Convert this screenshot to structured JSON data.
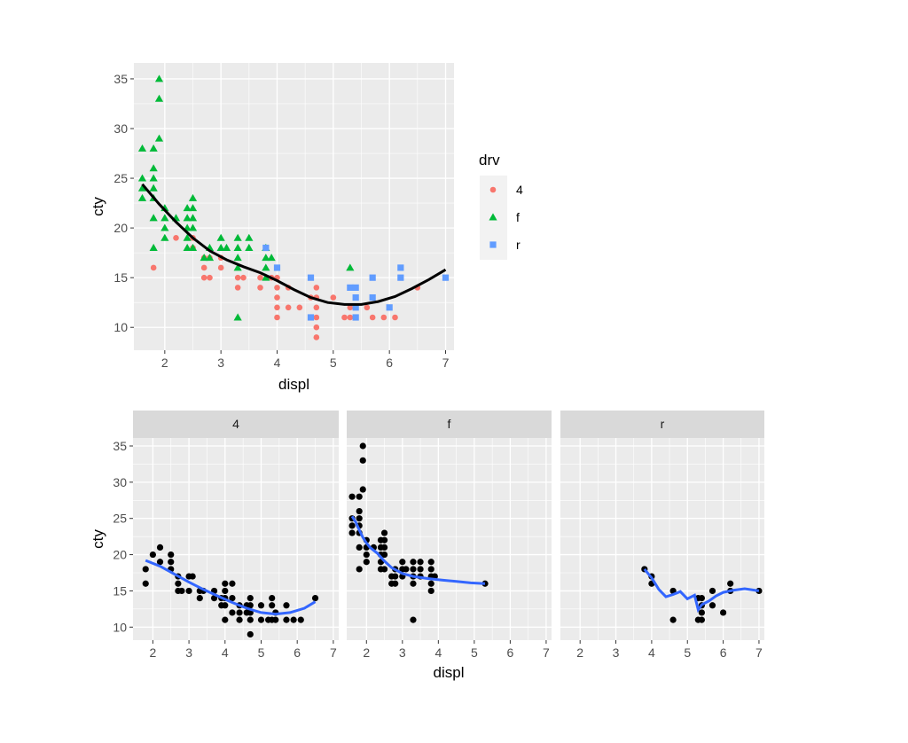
{
  "chart_data": [
    {
      "type": "scatter",
      "title": "",
      "xlabel": "displ",
      "ylabel": "cty",
      "xlim": [
        1.45,
        7.15
      ],
      "ylim": [
        7.7,
        36.6
      ],
      "x_ticks": [
        2,
        3,
        4,
        5,
        6,
        7
      ],
      "y_ticks": [
        10,
        15,
        20,
        25,
        30,
        35
      ],
      "grid": true,
      "legend": {
        "title": "drv",
        "position": "right",
        "entries": [
          {
            "label": "4",
            "color": "#F8766D",
            "shape": "circle"
          },
          {
            "label": "f",
            "color": "#00BA38",
            "shape": "triangle"
          },
          {
            "label": "r",
            "color": "#619CFF",
            "shape": "square"
          }
        ]
      },
      "series": [
        {
          "name": "4",
          "color": "#F8766D",
          "shape": "circle",
          "points": [
            [
              1.8,
              16
            ],
            [
              2.2,
              19
            ],
            [
              2.5,
              18
            ],
            [
              2.5,
              19
            ],
            [
              2.7,
              17
            ],
            [
              2.7,
              16
            ],
            [
              2.7,
              15
            ],
            [
              2.8,
              17
            ],
            [
              2.8,
              15
            ],
            [
              3.0,
              17
            ],
            [
              3.0,
              16
            ],
            [
              3.3,
              15
            ],
            [
              3.3,
              14
            ],
            [
              3.4,
              15
            ],
            [
              3.7,
              15
            ],
            [
              3.7,
              14
            ],
            [
              3.9,
              15
            ],
            [
              4.0,
              16
            ],
            [
              4.0,
              15
            ],
            [
              4.0,
              14
            ],
            [
              4.0,
              13
            ],
            [
              4.0,
              12
            ],
            [
              4.0,
              11
            ],
            [
              4.2,
              14
            ],
            [
              4.2,
              12
            ],
            [
              4.4,
              12
            ],
            [
              4.6,
              13
            ],
            [
              4.6,
              11
            ],
            [
              4.7,
              14
            ],
            [
              4.7,
              13
            ],
            [
              4.7,
              12
            ],
            [
              4.7,
              11
            ],
            [
              4.7,
              10
            ],
            [
              4.7,
              9
            ],
            [
              5.0,
              13
            ],
            [
              5.2,
              11
            ],
            [
              5.3,
              11
            ],
            [
              5.3,
              12
            ],
            [
              5.4,
              12
            ],
            [
              5.4,
              11
            ],
            [
              5.6,
              12
            ],
            [
              5.7,
              13
            ],
            [
              5.7,
              11
            ],
            [
              5.9,
              11
            ],
            [
              6.1,
              11
            ],
            [
              6.5,
              14
            ]
          ]
        },
        {
          "name": "f",
          "color": "#00BA38",
          "shape": "triangle",
          "points": [
            [
              1.6,
              28
            ],
            [
              1.6,
              25
            ],
            [
              1.6,
              24
            ],
            [
              1.6,
              23
            ],
            [
              1.8,
              28
            ],
            [
              1.8,
              26
            ],
            [
              1.8,
              25
            ],
            [
              1.8,
              24
            ],
            [
              1.8,
              23
            ],
            [
              1.8,
              21
            ],
            [
              1.8,
              18
            ],
            [
              1.9,
              35
            ],
            [
              1.9,
              33
            ],
            [
              1.9,
              29
            ],
            [
              2.0,
              22
            ],
            [
              2.0,
              21
            ],
            [
              2.0,
              20
            ],
            [
              2.0,
              19
            ],
            [
              2.2,
              21
            ],
            [
              2.4,
              22
            ],
            [
              2.4,
              21
            ],
            [
              2.4,
              20
            ],
            [
              2.4,
              19
            ],
            [
              2.4,
              18
            ],
            [
              2.5,
              23
            ],
            [
              2.5,
              22
            ],
            [
              2.5,
              21
            ],
            [
              2.5,
              20
            ],
            [
              2.5,
              18
            ],
            [
              2.7,
              17
            ],
            [
              2.8,
              18
            ],
            [
              2.8,
              17
            ],
            [
              3.0,
              19
            ],
            [
              3.0,
              18
            ],
            [
              3.1,
              18
            ],
            [
              3.3,
              19
            ],
            [
              3.3,
              18
            ],
            [
              3.3,
              17
            ],
            [
              3.3,
              16
            ],
            [
              3.3,
              11
            ],
            [
              3.5,
              19
            ],
            [
              3.5,
              18
            ],
            [
              3.8,
              18
            ],
            [
              3.8,
              17
            ],
            [
              3.8,
              16
            ],
            [
              3.8,
              15
            ],
            [
              3.9,
              17
            ],
            [
              5.3,
              16
            ]
          ]
        },
        {
          "name": "r",
          "color": "#619CFF",
          "shape": "square",
          "points": [
            [
              3.8,
              18
            ],
            [
              4.0,
              16
            ],
            [
              4.6,
              15
            ],
            [
              4.6,
              11
            ],
            [
              5.3,
              14
            ],
            [
              5.4,
              14
            ],
            [
              5.4,
              13
            ],
            [
              5.4,
              12
            ],
            [
              5.4,
              11
            ],
            [
              5.7,
              15
            ],
            [
              5.7,
              13
            ],
            [
              6.2,
              16
            ],
            [
              6.2,
              15
            ],
            [
              6.0,
              12
            ],
            [
              7.0,
              15
            ]
          ]
        }
      ],
      "smooth": {
        "color": "#000000",
        "x": [
          1.6,
          1.9,
          2.2,
          2.5,
          2.8,
          3.1,
          3.4,
          3.7,
          4.0,
          4.3,
          4.6,
          4.9,
          5.2,
          5.5,
          5.8,
          6.1,
          6.4,
          6.7,
          7.0
        ],
        "y": [
          24.4,
          22.4,
          20.6,
          19.0,
          17.7,
          16.8,
          16.1,
          15.5,
          14.7,
          13.8,
          13.0,
          12.5,
          12.3,
          12.3,
          12.6,
          13.1,
          13.9,
          14.8,
          15.8
        ]
      }
    },
    {
      "type": "scatter",
      "title": "",
      "xlabel": "displ",
      "ylabel": "cty",
      "xlim": [
        1.45,
        7.15
      ],
      "ylim": [
        8.2,
        36.1
      ],
      "x_ticks": [
        2,
        3,
        4,
        5,
        6,
        7
      ],
      "y_ticks": [
        10,
        15,
        20,
        25,
        30,
        35
      ],
      "grid": true,
      "point_color": "#000000",
      "smooth_color": "#3366FF",
      "facets": [
        {
          "label": "4",
          "points": [
            [
              1.8,
              18
            ],
            [
              1.8,
              16
            ],
            [
              2.0,
              20
            ],
            [
              2.2,
              21
            ],
            [
              2.2,
              19
            ],
            [
              2.5,
              20
            ],
            [
              2.5,
              19
            ],
            [
              2.5,
              18
            ],
            [
              2.7,
              17
            ],
            [
              2.7,
              16
            ],
            [
              2.7,
              15
            ],
            [
              2.8,
              15
            ],
            [
              3.0,
              17
            ],
            [
              3.0,
              15
            ],
            [
              3.1,
              17
            ],
            [
              3.3,
              15
            ],
            [
              3.3,
              14
            ],
            [
              3.4,
              15
            ],
            [
              3.7,
              15
            ],
            [
              3.7,
              14
            ],
            [
              3.9,
              14
            ],
            [
              3.9,
              13
            ],
            [
              4.0,
              16
            ],
            [
              4.0,
              15
            ],
            [
              4.0,
              14
            ],
            [
              4.0,
              13
            ],
            [
              4.0,
              11
            ],
            [
              4.2,
              16
            ],
            [
              4.2,
              14
            ],
            [
              4.2,
              12
            ],
            [
              4.4,
              13
            ],
            [
              4.4,
              12
            ],
            [
              4.4,
              11
            ],
            [
              4.6,
              13
            ],
            [
              4.6,
              12
            ],
            [
              4.7,
              14
            ],
            [
              4.7,
              13
            ],
            [
              4.7,
              12
            ],
            [
              4.7,
              11
            ],
            [
              4.7,
              9
            ],
            [
              5.0,
              13
            ],
            [
              5.0,
              11
            ],
            [
              5.2,
              11
            ],
            [
              5.3,
              14
            ],
            [
              5.3,
              13
            ],
            [
              5.3,
              11
            ],
            [
              5.4,
              12
            ],
            [
              5.4,
              11
            ],
            [
              5.7,
              13
            ],
            [
              5.7,
              11
            ],
            [
              5.9,
              11
            ],
            [
              6.1,
              11
            ],
            [
              6.5,
              14
            ]
          ],
          "smooth": {
            "x": [
              1.8,
              2.2,
              2.6,
              3.0,
              3.4,
              3.8,
              4.2,
              4.6,
              5.0,
              5.4,
              5.8,
              6.2,
              6.5
            ],
            "y": [
              19.2,
              18.4,
              17.3,
              16.2,
              15.2,
              14.3,
              13.4,
              12.6,
              12.0,
              11.8,
              12.0,
              12.6,
              13.5
            ]
          }
        },
        {
          "label": "f",
          "points": [
            [
              1.6,
              28
            ],
            [
              1.6,
              25
            ],
            [
              1.6,
              24
            ],
            [
              1.6,
              23
            ],
            [
              1.8,
              28
            ],
            [
              1.8,
              26
            ],
            [
              1.8,
              25
            ],
            [
              1.8,
              24
            ],
            [
              1.8,
              23
            ],
            [
              1.8,
              21
            ],
            [
              1.8,
              18
            ],
            [
              1.9,
              35
            ],
            [
              1.9,
              33
            ],
            [
              1.9,
              29
            ],
            [
              2.0,
              22
            ],
            [
              2.0,
              21
            ],
            [
              2.0,
              20
            ],
            [
              2.0,
              19
            ],
            [
              2.2,
              21
            ],
            [
              2.4,
              22
            ],
            [
              2.4,
              21
            ],
            [
              2.4,
              20
            ],
            [
              2.4,
              19
            ],
            [
              2.4,
              18
            ],
            [
              2.5,
              23
            ],
            [
              2.5,
              22
            ],
            [
              2.5,
              21
            ],
            [
              2.5,
              20
            ],
            [
              2.5,
              18
            ],
            [
              2.7,
              17
            ],
            [
              2.7,
              16
            ],
            [
              2.8,
              18
            ],
            [
              2.8,
              17
            ],
            [
              2.8,
              16
            ],
            [
              3.0,
              19
            ],
            [
              3.0,
              18
            ],
            [
              3.0,
              17
            ],
            [
              3.1,
              18
            ],
            [
              3.3,
              19
            ],
            [
              3.3,
              18
            ],
            [
              3.3,
              17
            ],
            [
              3.3,
              16
            ],
            [
              3.3,
              11
            ],
            [
              3.5,
              19
            ],
            [
              3.5,
              18
            ],
            [
              3.5,
              17
            ],
            [
              3.8,
              19
            ],
            [
              3.8,
              18
            ],
            [
              3.8,
              17
            ],
            [
              3.8,
              16
            ],
            [
              3.8,
              15
            ],
            [
              3.9,
              17
            ],
            [
              5.3,
              16
            ]
          ],
          "smooth": {
            "x": [
              1.6,
              1.7,
              1.8,
              1.9,
              2.0,
              2.1,
              2.3,
              2.5,
              2.7,
              3.0,
              3.3,
              3.7,
              4.1,
              4.5,
              4.9,
              5.3
            ],
            "y": [
              25.3,
              24.5,
              23.4,
              22.4,
              21.6,
              21.0,
              20.2,
              19.1,
              18.2,
              17.4,
              17.0,
              16.7,
              16.5,
              16.3,
              16.1,
              16.0
            ]
          }
        },
        {
          "label": "r",
          "points": [
            [
              3.8,
              18
            ],
            [
              4.0,
              17
            ],
            [
              4.0,
              16
            ],
            [
              4.6,
              15
            ],
            [
              4.6,
              11
            ],
            [
              5.3,
              14
            ],
            [
              5.3,
              11
            ],
            [
              5.4,
              14
            ],
            [
              5.4,
              13
            ],
            [
              5.4,
              12
            ],
            [
              5.4,
              11
            ],
            [
              5.7,
              15
            ],
            [
              5.7,
              13
            ],
            [
              6.0,
              12
            ],
            [
              6.2,
              16
            ],
            [
              6.2,
              15
            ],
            [
              7.0,
              15
            ]
          ],
          "smooth": {
            "x": [
              3.8,
              4.0,
              4.2,
              4.4,
              4.6,
              4.8,
              5.0,
              5.2,
              5.3,
              5.4,
              5.6,
              5.8,
              6.0,
              6.3,
              6.6,
              7.0
            ],
            "y": [
              18.0,
              16.8,
              15.2,
              14.2,
              14.5,
              14.9,
              13.9,
              14.4,
              12.4,
              13.1,
              13.6,
              14.3,
              14.8,
              15.1,
              15.3,
              15.0
            ]
          }
        }
      ]
    }
  ]
}
